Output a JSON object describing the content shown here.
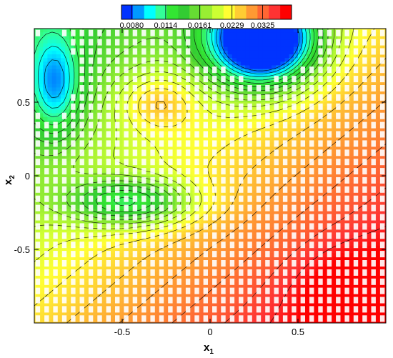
{
  "chart_data": {
    "type": "heatmap",
    "title": "",
    "xlabel": "x",
    "xlabel_subscript": "1",
    "ylabel": "x",
    "ylabel_subscript": "2",
    "xlim": [
      -1,
      1
    ],
    "ylim": [
      -1,
      1
    ],
    "x_ticks": [
      -0.5,
      0,
      0.5
    ],
    "x_tick_labels": [
      "-0.5",
      "0",
      "0.5"
    ],
    "y_ticks": [
      0.5,
      0,
      -0.5
    ],
    "y_tick_labels": [
      "0.5",
      "0",
      "-0.5"
    ],
    "colorbar": {
      "placement": "top-center",
      "ticks": [
        "0.0080",
        "0.0114",
        "0.0161",
        "0.0229",
        "0.0325"
      ],
      "colors": [
        "#0033ff",
        "#0099ff",
        "#00ffff",
        "#33ff99",
        "#33e633",
        "#33cc33",
        "#66dd33",
        "#99ee33",
        "#ccff33",
        "#ffff33",
        "#ffcc33",
        "#ff9933",
        "#ff6633",
        "#ff3333",
        "#ff0000"
      ]
    },
    "field_value_range": [
      0.008,
      0.04
    ],
    "features": [
      {
        "kind": "minimum",
        "x": 0.3,
        "y": 0.92,
        "value": 0.008
      },
      {
        "kind": "local-low",
        "x": -0.45,
        "y": -0.18,
        "value": 0.0161
      },
      {
        "kind": "local-low",
        "x": -0.88,
        "y": 0.62,
        "value": 0.0161
      },
      {
        "kind": "maximum",
        "x": 0.8,
        "y": -0.8,
        "value": 0.04
      }
    ],
    "grid": "white mesh markers over field"
  }
}
